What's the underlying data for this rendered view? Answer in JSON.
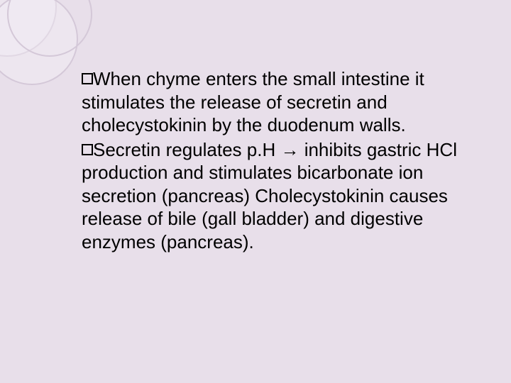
{
  "slide": {
    "background_color": "#e8dfea",
    "circle_border_color": "#d4c8d8",
    "text_color": "#000000",
    "font_size_pt": 20,
    "bullets": [
      {
        "text": "When chyme enters the small intestine it stimulates the release of secretin and cholecystokinin by the duodenum walls."
      },
      {
        "text_parts": {
          "before_arrow": "Secretin regulates p.H ",
          "arrow": "→",
          "after_arrow": " inhibits gastric HCl production and stimulates bicarbonate ion secretion (pancreas) Cholecystokinin causes release of bile (gall bladder) and digestive enzymes (pancreas)."
        }
      }
    ]
  }
}
